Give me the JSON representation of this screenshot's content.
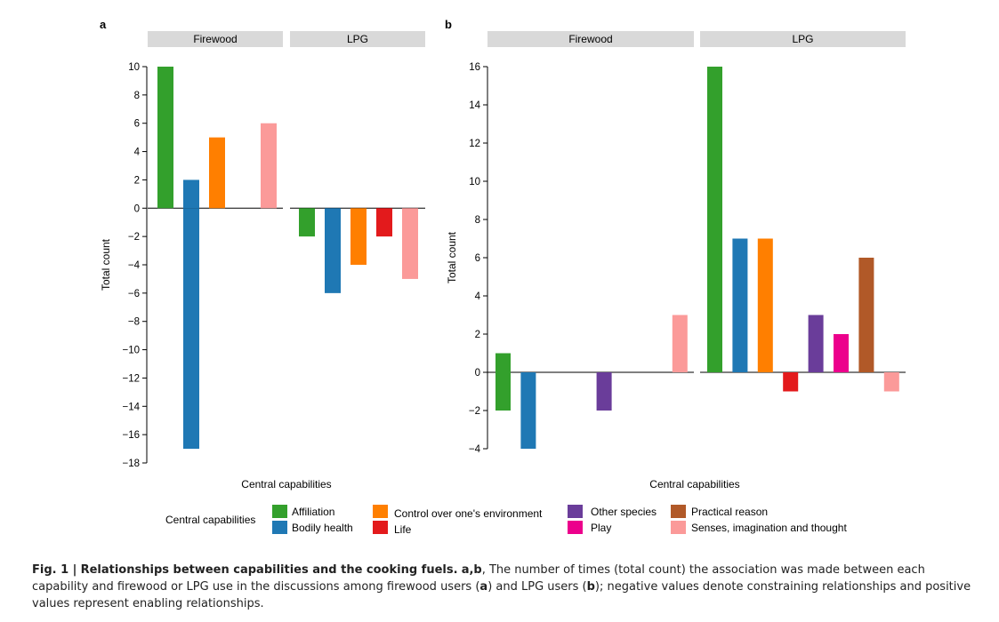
{
  "figure": {
    "panels": [
      {
        "letter": "a",
        "ylabel": "Total count",
        "xlabel": "Central capabilities"
      },
      {
        "letter": "b",
        "ylabel": "Total count",
        "xlabel": "Central capabilities"
      }
    ],
    "legend": {
      "title": "Central capabilities",
      "items": [
        {
          "label": "Affiliation",
          "color": "#33a02c"
        },
        {
          "label": "Bodily health",
          "color": "#1f78b4"
        },
        {
          "label": "Control over one's environment",
          "color": "#ff7f00"
        },
        {
          "label": "Life",
          "color": "#e31a1c"
        },
        {
          "label": "Other species",
          "color": "#6a3d9a"
        },
        {
          "label": "Play",
          "color": "#ec008c"
        },
        {
          "label": "Practical reason",
          "color": "#b15928"
        },
        {
          "label": "Senses, imagination and thought",
          "color": "#fb9a99"
        }
      ]
    }
  },
  "chart_data": [
    {
      "type": "bar",
      "panel": "a",
      "ylabel": "Total count",
      "xlabel": "Central capabilities",
      "ylim": [
        -18,
        10
      ],
      "yticks": [
        10,
        8,
        6,
        4,
        2,
        0,
        -2,
        -4,
        -6,
        -8,
        -10,
        -12,
        -14,
        -16,
        -18
      ],
      "facets": [
        {
          "name": "Firewood",
          "bars": [
            {
              "category": "Affiliation",
              "slot": 0,
              "values": [
                10
              ]
            },
            {
              "category": "Bodily health",
              "slot": 1,
              "values": [
                2,
                -17
              ]
            },
            {
              "category": "Control over one's environment",
              "slot": 2,
              "values": [
                5
              ]
            },
            {
              "category": "Senses, imagination and thought",
              "slot": 4,
              "values": [
                6
              ]
            }
          ]
        },
        {
          "name": "LPG",
          "bars": [
            {
              "category": "Affiliation",
              "slot": 0,
              "values": [
                -2
              ]
            },
            {
              "category": "Bodily health",
              "slot": 1,
              "values": [
                -6
              ]
            },
            {
              "category": "Control over one's environment",
              "slot": 2,
              "values": [
                -4
              ]
            },
            {
              "category": "Life",
              "slot": 3,
              "values": [
                -2
              ]
            },
            {
              "category": "Senses, imagination and thought",
              "slot": 4,
              "values": [
                -5
              ]
            }
          ]
        }
      ]
    },
    {
      "type": "bar",
      "panel": "b",
      "ylabel": "Total count",
      "xlabel": "Central capabilities",
      "ylim": [
        -4,
        16
      ],
      "yticks": [
        16,
        14,
        12,
        10,
        8,
        6,
        4,
        2,
        0,
        -2,
        -4
      ],
      "facets": [
        {
          "name": "Firewood",
          "bars": [
            {
              "category": "Affiliation",
              "slot": 0,
              "values": [
                1,
                -2
              ]
            },
            {
              "category": "Bodily health",
              "slot": 1,
              "values": [
                -4
              ]
            },
            {
              "category": "Other species",
              "slot": 4,
              "values": [
                -2
              ]
            },
            {
              "category": "Senses, imagination and thought",
              "slot": 7,
              "values": [
                3
              ]
            }
          ]
        },
        {
          "name": "LPG",
          "bars": [
            {
              "category": "Affiliation",
              "slot": 0,
              "values": [
                16
              ]
            },
            {
              "category": "Bodily health",
              "slot": 1,
              "values": [
                7
              ]
            },
            {
              "category": "Control over one's environment",
              "slot": 2,
              "values": [
                7
              ]
            },
            {
              "category": "Life",
              "slot": 3,
              "values": [
                -1
              ]
            },
            {
              "category": "Other species",
              "slot": 4,
              "values": [
                3
              ]
            },
            {
              "category": "Play",
              "slot": 5,
              "values": [
                2
              ]
            },
            {
              "category": "Practical reason",
              "slot": 6,
              "values": [
                6
              ]
            },
            {
              "category": "Senses, imagination and thought",
              "slot": 7,
              "values": [
                -1
              ]
            }
          ]
        }
      ]
    }
  ],
  "caption": {
    "label": "Fig. 1 |",
    "title": "Relationships between capabilities and the cooking fuels.",
    "panels_label": "a,b",
    "text_1": ", The number of times (total count) the association was made between each capability and firewood or LPG use in the discussions among firewood users (",
    "ref_a": "a",
    "text_2": ") and LPG users (",
    "ref_b": "b",
    "text_3": "); negative values denote constraining relationships and positive values represent enabling relationships."
  }
}
